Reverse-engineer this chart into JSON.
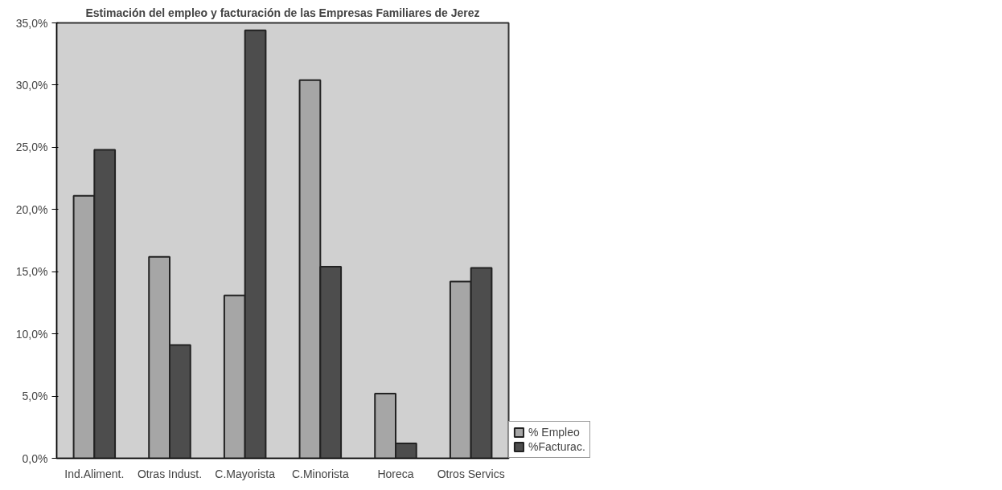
{
  "chart_data": {
    "type": "bar",
    "title": "Estimación del empleo y facturación de las Empresas Familiares de Jerez",
    "categories": [
      "Ind.Aliment.",
      "Otras Indust.",
      "C.Mayorista",
      "C.Minorista",
      "Horeca",
      "Otros Servics"
    ],
    "series": [
      {
        "name": "% Empleo",
        "color": "#a6a6a6",
        "values": [
          21.1,
          16.2,
          13.1,
          30.4,
          5.2,
          14.2
        ]
      },
      {
        "name": "%Facturac.",
        "color": "#4d4d4d",
        "values": [
          24.8,
          9.1,
          34.4,
          15.4,
          1.2,
          15.3
        ]
      }
    ],
    "ylim": [
      0,
      35
    ],
    "yticks": [
      {
        "value": 0,
        "label": "0,0%"
      },
      {
        "value": 5,
        "label": "5,0%"
      },
      {
        "value": 10,
        "label": "10,0%"
      },
      {
        "value": 15,
        "label": "15,0%"
      },
      {
        "value": 20,
        "label": "20,0%"
      },
      {
        "value": 25,
        "label": "25,0%"
      },
      {
        "value": 30,
        "label": "30,0%"
      },
      {
        "value": 35,
        "label": "35,0%"
      }
    ],
    "legend": "bottom right",
    "grid": false
  }
}
